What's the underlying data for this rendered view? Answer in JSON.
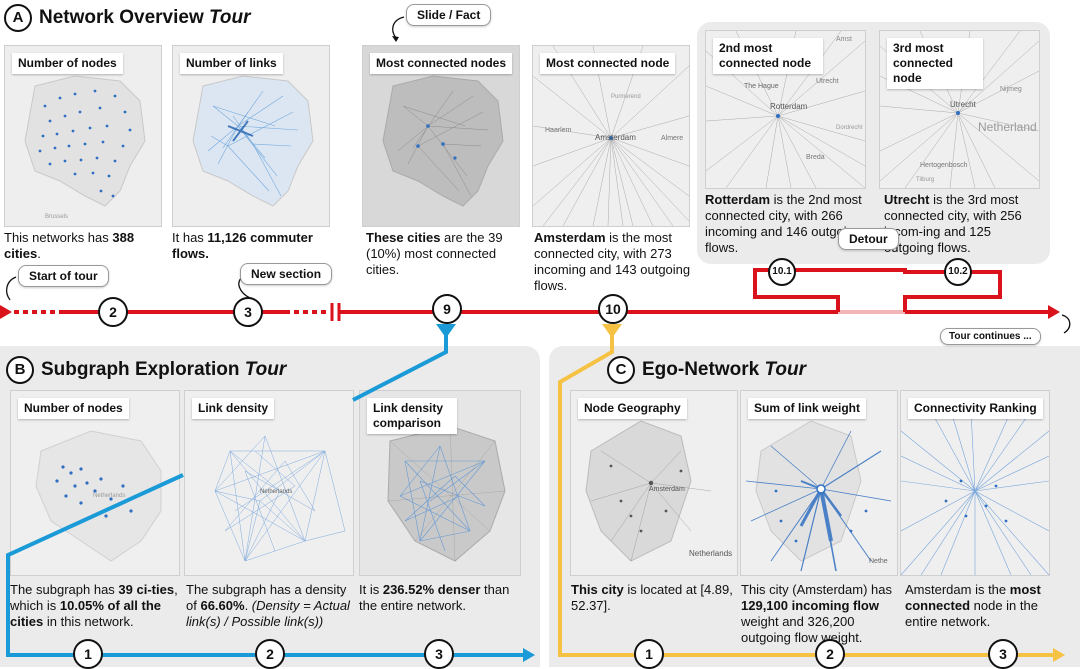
{
  "colors": {
    "red": "#d9121c",
    "blue": "#1a9ad6",
    "yellow": "#f5c244",
    "node_blue": "#2f6fc2"
  },
  "section_a": {
    "letter": "A",
    "title_plain": "Network Overview ",
    "title_italic": "Tour",
    "slides": [
      {
        "label": "Number of nodes",
        "cap_pre": "This networks has ",
        "cap_bold": "388 cities",
        "cap_post": "."
      },
      {
        "label": "Number of links",
        "cap_pre": "It has ",
        "cap_bold": "11,126 commuter flows.",
        "cap_post": ""
      },
      {
        "label": "Most connected nodes",
        "cap_pre": "",
        "cap_bold": "These cities",
        "cap_post": " are the 39 (10%) most connected cities."
      },
      {
        "label": "Most connected node",
        "cap_pre": "",
        "cap_bold": "Amsterdam",
        "cap_post": " is the most connected city, with 273 incoming and 143 outgoing flows."
      },
      {
        "label": "2nd most connected node",
        "cap_pre": "",
        "cap_bold": "Rotterdam",
        "cap_post": " is the 2nd most connected city, with 266 incoming and 146 outgoing flows."
      },
      {
        "label": "3rd most connected node",
        "cap_pre": "",
        "cap_bold": "Utrecht",
        "cap_post": " is the 3rd most connected city, with 256 incom-ing and 125 outgoing flows."
      }
    ],
    "map_places": {
      "amsterdam": "Amsterdam",
      "haarlem": "Haarlem",
      "purmerend": "Purmerend",
      "almere": "Almere",
      "hague": "The Hague",
      "rotterdam": "Rotterdam",
      "utrecht": "Utrecht",
      "breda": "Breda",
      "netherland": "Netherland",
      "hertogenbosch": "Hertogenbosch",
      "netherlands": "Netherlands",
      "brussels": "Brussels",
      "dordrecht": "Dordrecht",
      "amst": "Amst",
      "nijmeg": "Nijmeg",
      "tilburg": "Tilburg",
      "nethe": "Nethe"
    },
    "steps": [
      "2",
      "3",
      "9",
      "10",
      "10.1",
      "10.2"
    ],
    "callouts": {
      "slide_fact": "Slide / Fact",
      "start": "Start of tour",
      "new_section": "New section",
      "detour": "Detour",
      "continues": "Tour continues ..."
    }
  },
  "section_b": {
    "letter": "B",
    "title_plain": "Subgraph Exploration ",
    "title_italic": "Tour",
    "slides": [
      {
        "label": "Number of nodes"
      },
      {
        "label": "Link density"
      },
      {
        "label": "Link density comparison"
      }
    ],
    "cap1": {
      "pre": "The subgraph has ",
      "b1": "39 ci-ties",
      "mid": ", which is ",
      "b2": "10.05% of all the cities",
      "post": " in this network."
    },
    "cap2": {
      "pre": "The subgraph has a density of ",
      "b1": "66.60%",
      "mid": ". ",
      "italic": "(Density = Actual link(s) / Possible link(s))"
    },
    "cap3": {
      "pre": "It is ",
      "b1": "236.52% denser",
      "post": " than the entire network."
    },
    "steps": [
      "1",
      "2",
      "3"
    ]
  },
  "section_c": {
    "letter": "C",
    "title_plain": "Ego-Network ",
    "title_italic": "Tour",
    "slides": [
      {
        "label": "Node Geography"
      },
      {
        "label": "Sum of link weight"
      },
      {
        "label": "Connectivity Ranking"
      }
    ],
    "cap1": {
      "b1": "This city",
      "post": " is located at [4.89, 52.37]."
    },
    "cap2": {
      "pre": "This city (Amsterdam) has ",
      "b1": "129,100 incoming flow",
      "post": " weight and 326,200 outgoing flow weight."
    },
    "cap3": {
      "pre": "Amsterdam is the ",
      "b1": "most connected",
      "post": " node in the entire network."
    },
    "steps": [
      "1",
      "2",
      "3"
    ]
  }
}
